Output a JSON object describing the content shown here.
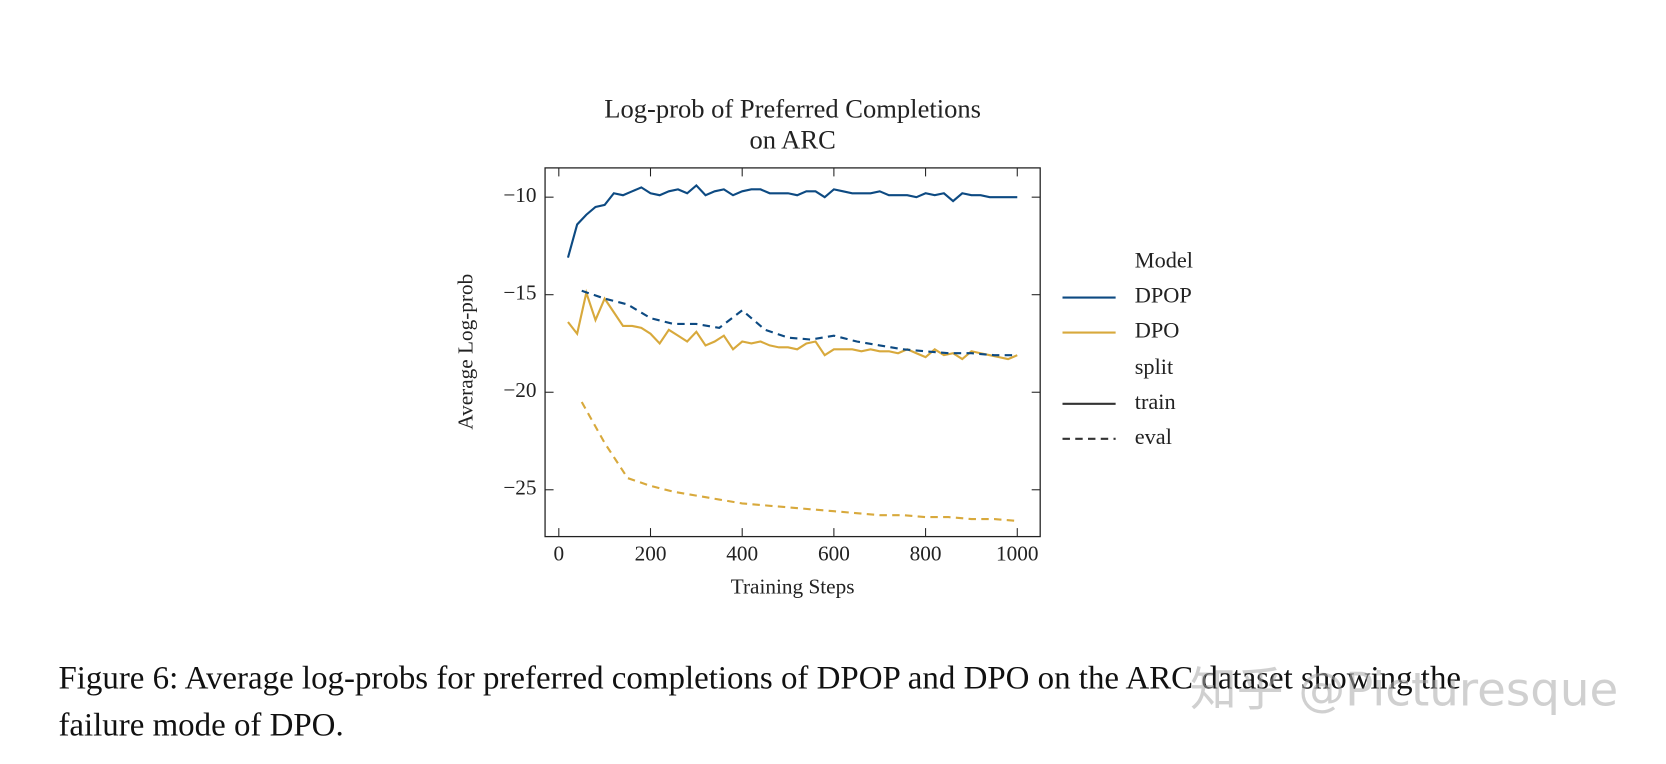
{
  "chart_data": {
    "type": "line",
    "title": [
      "Log-prob of Preferred Completions",
      "on ARC"
    ],
    "xlabel": "Training Steps",
    "ylabel": "Average Log-prob",
    "xlim": [
      -30,
      1050
    ],
    "ylim": [
      -27.4,
      -8.5
    ],
    "xticks": [
      0,
      200,
      400,
      600,
      800,
      1000
    ],
    "yticks": [
      {
        "value": -10,
        "label": "−10"
      },
      {
        "value": -15,
        "label": "−15"
      },
      {
        "value": -20,
        "label": "−20"
      },
      {
        "value": -25,
        "label": "−25"
      }
    ],
    "legend": {
      "model_title": "Model",
      "split_title": "split",
      "models": [
        {
          "name": "DPOP",
          "color": "#0d4a82"
        },
        {
          "name": "DPO",
          "color": "#d8a93c"
        }
      ],
      "splits": [
        {
          "name": "train",
          "dash": "solid"
        },
        {
          "name": "eval",
          "dash": "dashed"
        }
      ]
    },
    "series": [
      {
        "model": "DPOP",
        "split": "train",
        "color": "#0d4a82",
        "dash": "solid",
        "x": [
          20,
          40,
          60,
          80,
          100,
          120,
          140,
          160,
          180,
          200,
          220,
          240,
          260,
          280,
          300,
          320,
          340,
          360,
          380,
          400,
          420,
          440,
          460,
          480,
          500,
          520,
          540,
          560,
          580,
          600,
          620,
          640,
          660,
          680,
          700,
          720,
          740,
          760,
          780,
          800,
          820,
          840,
          860,
          880,
          900,
          920,
          940,
          960,
          980,
          1000
        ],
        "values": [
          -13.1,
          -11.4,
          -10.9,
          -10.5,
          -10.4,
          -9.8,
          -9.9,
          -9.7,
          -9.5,
          -9.8,
          -9.9,
          -9.7,
          -9.6,
          -9.8,
          -9.4,
          -9.9,
          -9.7,
          -9.6,
          -9.9,
          -9.7,
          -9.6,
          -9.6,
          -9.8,
          -9.8,
          -9.8,
          -9.9,
          -9.7,
          -9.7,
          -10.0,
          -9.6,
          -9.7,
          -9.8,
          -9.8,
          -9.8,
          -9.7,
          -9.9,
          -9.9,
          -9.9,
          -10.0,
          -9.8,
          -9.9,
          -9.8,
          -10.2,
          -9.8,
          -9.9,
          -9.9,
          -10.0,
          -10.0,
          -10.0,
          -10.0
        ]
      },
      {
        "model": "DPO",
        "split": "train",
        "color": "#d8a93c",
        "dash": "solid",
        "x": [
          20,
          40,
          60,
          80,
          100,
          120,
          140,
          160,
          180,
          200,
          220,
          240,
          260,
          280,
          300,
          320,
          340,
          360,
          380,
          400,
          420,
          440,
          460,
          480,
          500,
          520,
          540,
          560,
          580,
          600,
          620,
          640,
          660,
          680,
          700,
          720,
          740,
          760,
          780,
          800,
          820,
          840,
          860,
          880,
          900,
          920,
          940,
          960,
          980,
          1000
        ],
        "values": [
          -16.4,
          -17.0,
          -14.9,
          -16.3,
          -15.2,
          -15.9,
          -16.6,
          -16.6,
          -16.7,
          -17.0,
          -17.5,
          -16.8,
          -17.1,
          -17.4,
          -16.9,
          -17.6,
          -17.4,
          -17.1,
          -17.8,
          -17.4,
          -17.5,
          -17.4,
          -17.6,
          -17.7,
          -17.7,
          -17.8,
          -17.5,
          -17.4,
          -18.1,
          -17.8,
          -17.8,
          -17.8,
          -17.9,
          -17.8,
          -17.9,
          -17.9,
          -18.0,
          -17.8,
          -18.0,
          -18.2,
          -17.8,
          -18.1,
          -18.0,
          -18.3,
          -17.9,
          -18.0,
          -18.1,
          -18.2,
          -18.3,
          -18.1
        ]
      },
      {
        "model": "DPOP",
        "split": "eval",
        "color": "#0d4a82",
        "dash": "dashed",
        "x": [
          50,
          100,
          150,
          200,
          250,
          300,
          350,
          400,
          450,
          500,
          550,
          600,
          650,
          700,
          750,
          800,
          850,
          900,
          950,
          1000
        ],
        "values": [
          -14.8,
          -15.2,
          -15.5,
          -16.2,
          -16.5,
          -16.5,
          -16.7,
          -15.8,
          -16.8,
          -17.2,
          -17.3,
          -17.1,
          -17.4,
          -17.6,
          -17.8,
          -17.9,
          -18.0,
          -18.0,
          -18.1,
          -18.1
        ]
      },
      {
        "model": "DPO",
        "split": "eval",
        "color": "#d8a93c",
        "dash": "dashed",
        "x": [
          50,
          100,
          150,
          200,
          250,
          300,
          350,
          400,
          450,
          500,
          550,
          600,
          650,
          700,
          750,
          800,
          850,
          900,
          950,
          1000
        ],
        "values": [
          -20.5,
          -22.6,
          -24.4,
          -24.8,
          -25.1,
          -25.3,
          -25.5,
          -25.7,
          -25.8,
          -25.9,
          -26.0,
          -26.1,
          -26.2,
          -26.3,
          -26.3,
          -26.4,
          -26.4,
          -26.5,
          -26.5,
          -26.6
        ]
      }
    ]
  },
  "caption": [
    "Figure 6: Average log-probs for preferred completions of DPOP and DPO on the ARC dataset showing the",
    "failure mode of DPO."
  ],
  "watermark": "知乎 @Picturesque"
}
